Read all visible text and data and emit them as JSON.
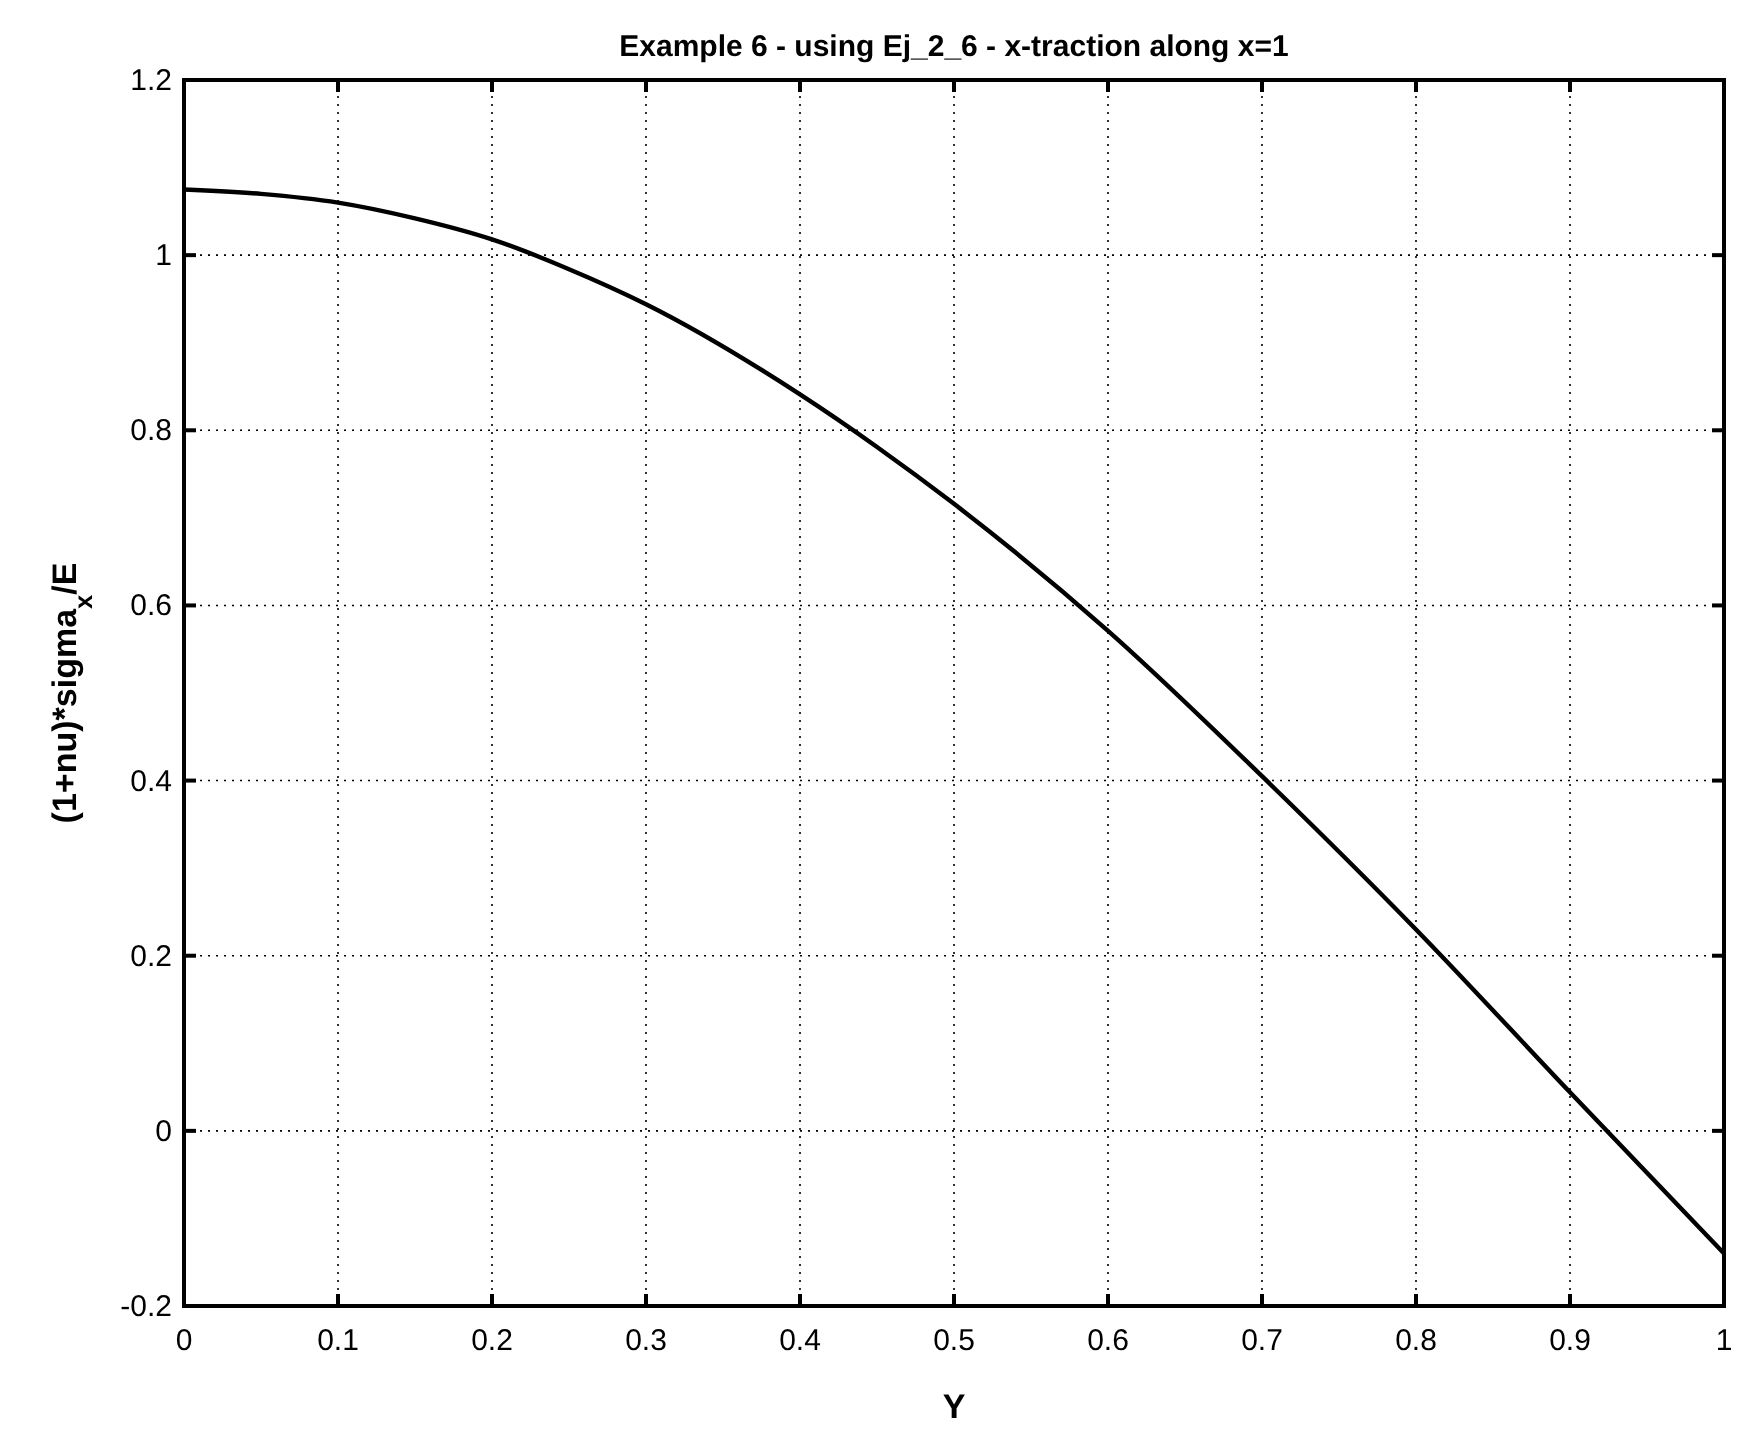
{
  "chart_data": {
    "type": "line",
    "title": "Example 6 - using Ej_2_6 - x-traction along x=1",
    "xlabel": "Y",
    "ylabel": "(1+nu)*sigma$_{x}$/E",
    "x": [
      0,
      0.05,
      0.1,
      0.15,
      0.2,
      0.25,
      0.3,
      0.4,
      0.45,
      0.5,
      0.6,
      0.7,
      0.8,
      0.9,
      1
    ],
    "series": [
      {
        "color": "#000000",
        "values": [
          1.075,
          1.07,
          1.06,
          1.042,
          1.018,
          0.984,
          0.944,
          0.841,
          0.781,
          0.716,
          0.571,
          0.405,
          0.23,
          0.044,
          -0.14
        ]
      }
    ],
    "xlim": [
      0,
      1
    ],
    "ylim": [
      -0.2,
      1.2
    ],
    "xticks": [
      0,
      0.1,
      0.2,
      0.3,
      0.4,
      0.5,
      0.6,
      0.7,
      0.8,
      0.9,
      1
    ],
    "yticks": [
      -0.2,
      0,
      0.2,
      0.4,
      0.6,
      0.8,
      1,
      1.2
    ],
    "grid": true,
    "line_style": "solid",
    "marker": "none"
  }
}
